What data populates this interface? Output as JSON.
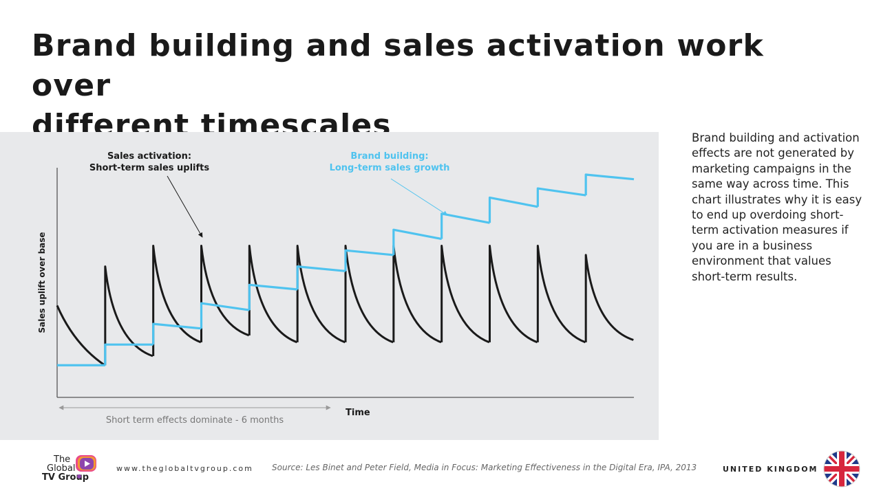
{
  "slide": {
    "title_line1": "Brand building and sales activation work over",
    "title_line2": "different timescales",
    "side_text": "Brand building and activation effects are not generated by marketing campaigns in the same way across time. This chart illustrates why it is easy to end up overdoing short-term activation measures if you are in a business environment that values short-term results."
  },
  "chart_data": {
    "type": "line",
    "title": "",
    "xlabel": "Time",
    "ylabel": "Sales uplift over base",
    "xlim": [
      0,
      12
    ],
    "ylim": [
      0,
      10
    ],
    "grid": false,
    "series": [
      {
        "name": "Sales activation",
        "color": "#1a1a1a",
        "description": "sawtooth with decaying spikes",
        "spike_times": [
          0,
          1,
          2,
          3,
          4,
          5,
          6,
          7,
          8,
          9,
          10,
          11
        ],
        "spike_peaks": [
          4.0,
          5.7,
          6.6,
          6.6,
          6.6,
          6.6,
          6.6,
          6.6,
          6.6,
          6.6,
          6.6,
          6.2
        ],
        "trough_before_next_spike": [
          1.4,
          1.8,
          2.4,
          2.7,
          2.4,
          2.4,
          2.4,
          2.4,
          2.4,
          2.4,
          2.4,
          2.5
        ]
      },
      {
        "name": "Brand building",
        "color": "#4fc3ef",
        "description": "staircase, each step rising then slowly declining",
        "step_times": [
          0,
          1,
          2,
          3,
          4,
          5,
          6,
          7,
          8,
          9,
          10,
          11
        ],
        "step_start": [
          1.4,
          2.3,
          3.2,
          4.1,
          4.9,
          5.7,
          6.4,
          7.3,
          8.0,
          8.7,
          9.1,
          9.7
        ],
        "step_end": [
          1.4,
          2.3,
          3.0,
          3.8,
          4.7,
          5.5,
          6.2,
          6.9,
          7.6,
          8.3,
          8.8,
          9.5
        ]
      }
    ],
    "annotations": {
      "sales_activation_line1": "Sales activation:",
      "sales_activation_line2": "Short-term sales uplifts",
      "brand_building_line1": "Brand building:",
      "brand_building_line2": "Long-term sales growth",
      "short_term_note": "Short term effects dominate - 6 months"
    },
    "colors": {
      "activation": "#1a1a1a",
      "brand": "#4fc3ef",
      "axis": "#555555",
      "arrow": "#999999"
    }
  },
  "footer": {
    "logo_line1": "The",
    "logo_line2": "Global",
    "logo_line3": "TV Group",
    "url": "www.theglobaltvgroup.com",
    "source": "Source: Les Binet and Peter Field, Media in Focus: Marketing Effectiveness in the Digital Era, IPA, 2013",
    "country": "UNITED KINGDOM"
  }
}
